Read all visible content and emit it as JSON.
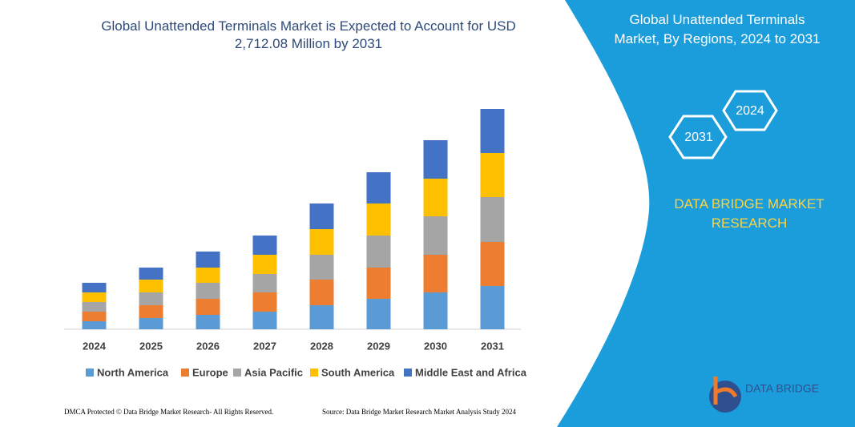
{
  "chart_data": {
    "type": "bar",
    "title": "Global Unattended Terminals Market is Expected to Account for USD 2,712.08 Million by 2031",
    "categories": [
      "2024",
      "2025",
      "2026",
      "2027",
      "2028",
      "2029",
      "2030",
      "2031"
    ],
    "series": [
      {
        "name": "North America",
        "color": "#5b9bd5",
        "values": [
          10,
          14,
          18,
          22,
          30,
          38,
          46,
          54
        ]
      },
      {
        "name": "Europe",
        "color": "#ed7d31",
        "values": [
          12,
          16,
          20,
          24,
          32,
          39,
          47,
          55
        ]
      },
      {
        "name": "Asia Pacific",
        "color": "#a5a5a5",
        "values": [
          12,
          16,
          20,
          23,
          31,
          40,
          48,
          56
        ]
      },
      {
        "name": "South America",
        "color": "#ffc000",
        "values": [
          12,
          16,
          19,
          24,
          32,
          40,
          47,
          55
        ]
      },
      {
        "name": "Middle East and Africa",
        "color": "#4472c4",
        "values": [
          12,
          15,
          20,
          24,
          32,
          39,
          48,
          55
        ]
      }
    ],
    "stacked": true,
    "ylim": [
      0,
      280
    ]
  },
  "panel": {
    "title": "Global Unattended Terminals Market, By Regions, 2024 to 2031",
    "hexagons": [
      "2024",
      "2031"
    ],
    "brand": "DATA BRIDGE MARKET RESEARCH"
  },
  "footer": {
    "left": "DMCA Protected © Data Bridge Market Research- All Rights Reserved.",
    "right": "Source: Data Bridge Market Research Market Analysis Study 2024"
  },
  "logo": {
    "name": "DATA BRIDGE"
  }
}
